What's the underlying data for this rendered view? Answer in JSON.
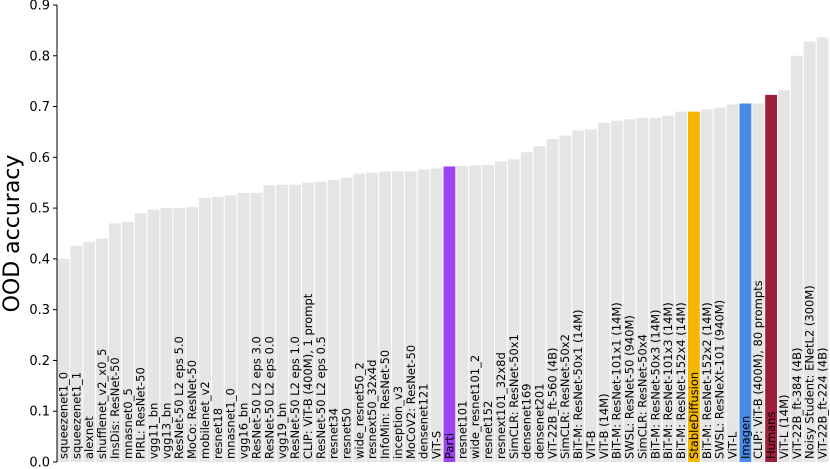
{
  "chart_data": {
    "type": "bar",
    "ylabel": "OOD accuracy",
    "ylim": [
      0.0,
      0.9
    ],
    "yticks": [
      0.0,
      0.1,
      0.2,
      0.3,
      0.4,
      0.5,
      0.6,
      0.7,
      0.8,
      0.9
    ],
    "grid": false,
    "default_color": "#e5e5e5",
    "categories": [
      "squeezenet1_0",
      "squeezenet1_1",
      "alexnet",
      "shufflenet_v2_x0_5",
      "InsDis: ResNet-50",
      "mnasnet0_5",
      "PIRL: ResNet-50",
      "vgg11_bn",
      "vgg13_bn",
      "ResNet-50 L2 eps 5.0",
      "MoCo: ResNet-50",
      "mobilenet_v2",
      "resnet18",
      "mnasnet1_0",
      "vgg16_bn",
      "ResNet-50 L2 eps 3.0",
      "ResNet-50 L2 eps 0.0",
      "vgg19_bn",
      "ResNet-50 L2 eps 1.0",
      "CLIP: ViT-B (400M), 1 prompt",
      "ResNet-50 L2 eps 0.5",
      "resnet34",
      "resnet50",
      "wide_resnet50_2",
      "resnext50_32x4d",
      "InfoMin: ResNet-50",
      "inception_v3",
      "MoCoV2: ResNet-50",
      "densenet121",
      "ViT-S",
      "Parti",
      "resnet101",
      "wide_resnet101_2",
      "resnet152",
      "resnext101_32x8d",
      "SimCLR: ResNet-50x1",
      "densenet169",
      "densenet201",
      "ViT-22B_ft-560 (4B)",
      "SimCLR: ResNet-50x2",
      "BiT-M: ResNet-50x1 (14M)",
      "ViT-B",
      "ViT-B (14M)",
      "BiT-M: ResNet-101x1 (14M)",
      "SWSL: ResNet-50 (940M)",
      "SimCLR: ResNet-50x4",
      "BiT-M: ResNet-50x3 (14M)",
      "BiT-M: ResNet-101x3 (14M)",
      "BiT-M: ResNet-152x4 (14M)",
      "StableDiffusion",
      "BiT-M: ResNet-152x2 (14M)",
      "SWSL: ResNeXt-101 (940M)",
      "ViT-L",
      "Imagen",
      "CLIP: ViT-B (400M), 80 prompts",
      "Humans",
      "ViT-L (14M)",
      "ViT-22B_ft-384 (4B)",
      "Noisy Student: ENetL2 (300M)",
      "ViT-22B_ft-224 (4B)"
    ],
    "values": [
      0.4,
      0.426,
      0.433,
      0.44,
      0.47,
      0.473,
      0.49,
      0.497,
      0.5,
      0.5,
      0.502,
      0.52,
      0.522,
      0.525,
      0.53,
      0.53,
      0.545,
      0.546,
      0.546,
      0.55,
      0.552,
      0.555,
      0.56,
      0.568,
      0.57,
      0.572,
      0.572,
      0.572,
      0.576,
      0.578,
      0.582,
      0.583,
      0.584,
      0.585,
      0.592,
      0.596,
      0.61,
      0.622,
      0.636,
      0.643,
      0.653,
      0.655,
      0.668,
      0.672,
      0.675,
      0.678,
      0.678,
      0.682,
      0.69,
      0.69,
      0.694,
      0.698,
      0.704,
      0.706,
      0.706,
      0.723,
      0.732,
      0.8,
      0.828,
      0.836
    ],
    "highlights": {
      "Parti": "#9b42f2",
      "StableDiffusion": "#f5b700",
      "Imagen": "#4a8ae8",
      "Humans": "#a01d3a"
    }
  }
}
